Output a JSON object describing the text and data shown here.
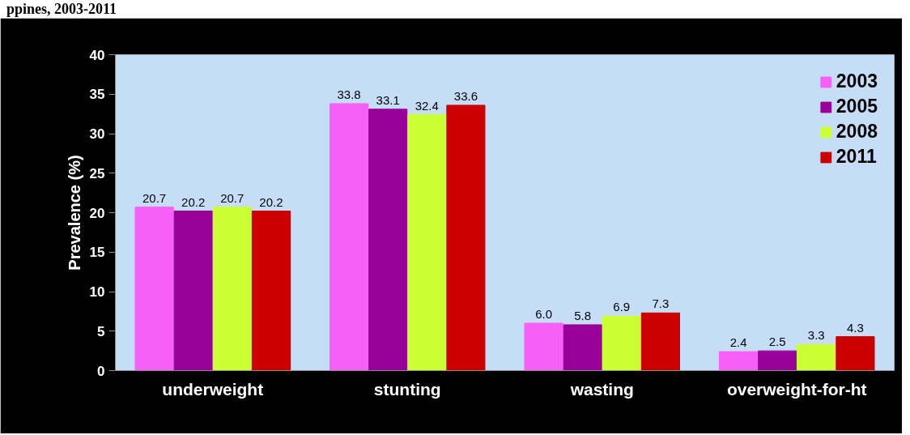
{
  "chart_data": {
    "type": "bar",
    "title": "ppines, 2003-2011",
    "ylabel": "Prevalence (%)",
    "categories": [
      "underweight",
      "stunting",
      "wasting",
      "overweight-for-ht"
    ],
    "series": [
      {
        "name": "2003",
        "color": "#f75ff7",
        "values": [
          20.7,
          33.8,
          6.0,
          2.4
        ]
      },
      {
        "name": "2005",
        "color": "#990099",
        "values": [
          20.2,
          33.1,
          5.8,
          2.5
        ]
      },
      {
        "name": "2008",
        "color": "#ccff33",
        "values": [
          20.7,
          32.4,
          6.9,
          3.3
        ]
      },
      {
        "name": "2011",
        "color": "#cc0000",
        "values": [
          20.2,
          33.6,
          7.3,
          4.3
        ]
      }
    ],
    "value_labels": [
      [
        "20.7",
        "33.8",
        "6.0",
        "2.4"
      ],
      [
        "20.2",
        "33.1",
        "5.8",
        "2.5"
      ],
      [
        "20.7",
        "32.4",
        "6.9",
        "3.3"
      ],
      [
        "20.2",
        "33.6",
        "7.3",
        "4.3"
      ]
    ],
    "ylim": [
      0,
      40
    ],
    "yticks": [
      0,
      5,
      10,
      15,
      20,
      25,
      30,
      35,
      40
    ],
    "grid": false,
    "legend": "top right"
  }
}
